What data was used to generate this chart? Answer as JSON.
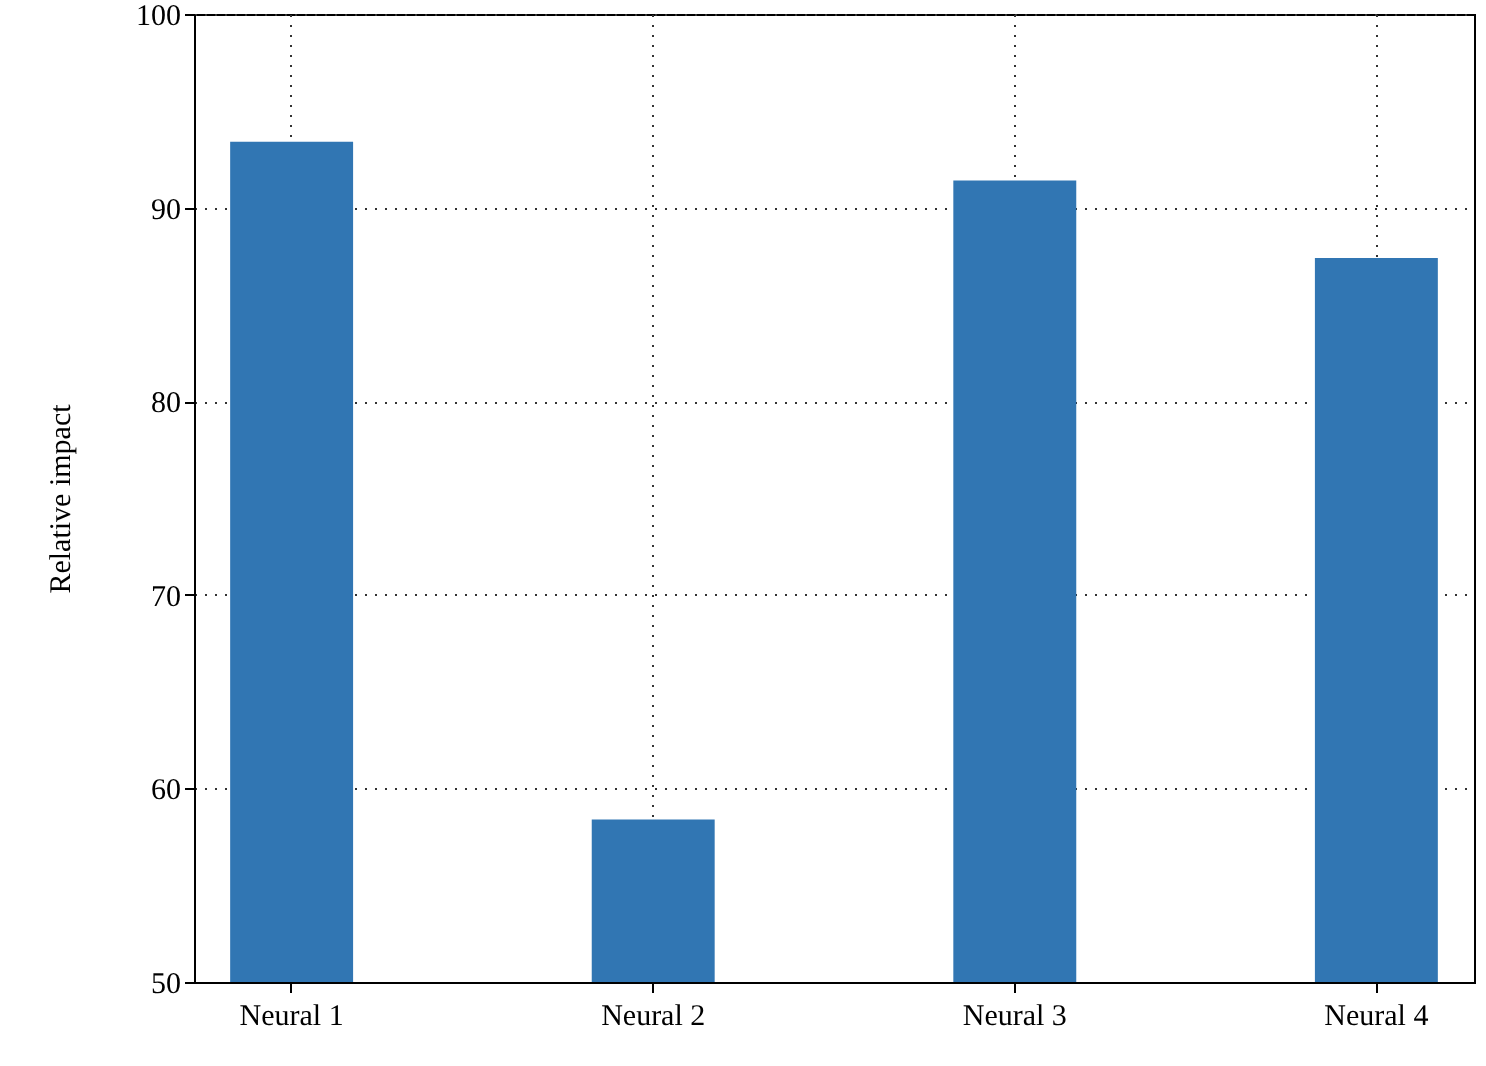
{
  "chart_data": {
    "type": "bar",
    "ylabel": "Relative impact",
    "categories": [
      "Neural 1",
      "Neural 2",
      "Neural 3",
      "Neural 4"
    ],
    "values": [
      93.4,
      58.4,
      91.4,
      87.4
    ],
    "color": "#3176b3",
    "ylim": [
      50,
      100
    ],
    "yticks": [
      50,
      60,
      70,
      80,
      90,
      100
    ],
    "grid": true
  }
}
